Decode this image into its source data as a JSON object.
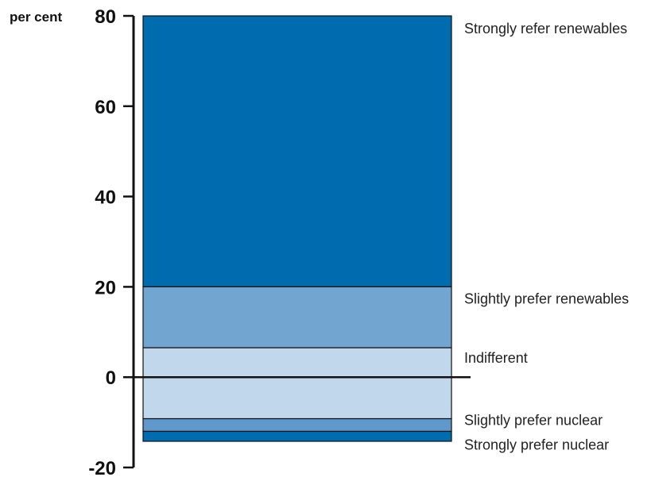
{
  "chart_data": {
    "type": "bar",
    "unit_label": "per cent",
    "ylim": [
      -20,
      80
    ],
    "yticks": [
      80,
      60,
      40,
      20,
      0,
      -20
    ],
    "ytick_labels": [
      "80",
      "60",
      "40",
      "20",
      "0",
      "-20"
    ],
    "segments": [
      {
        "name": "Strongly refer renewables",
        "from": 20,
        "to": 80,
        "color": "#006cb0"
      },
      {
        "name": "Slightly prefer renewables",
        "from": 6.5,
        "to": 20,
        "color": "#72a5d0"
      },
      {
        "name": "Indifferent",
        "from": -9.2,
        "to": 6.5,
        "color": "#c1d7ec"
      },
      {
        "name": "Slightly prefer nuclear",
        "from": -12,
        "to": -9.2,
        "color": "#5f99cb"
      },
      {
        "name": "Strongly prefer nuclear",
        "from": -14.2,
        "to": -12,
        "color": "#006cb0"
      }
    ]
  }
}
